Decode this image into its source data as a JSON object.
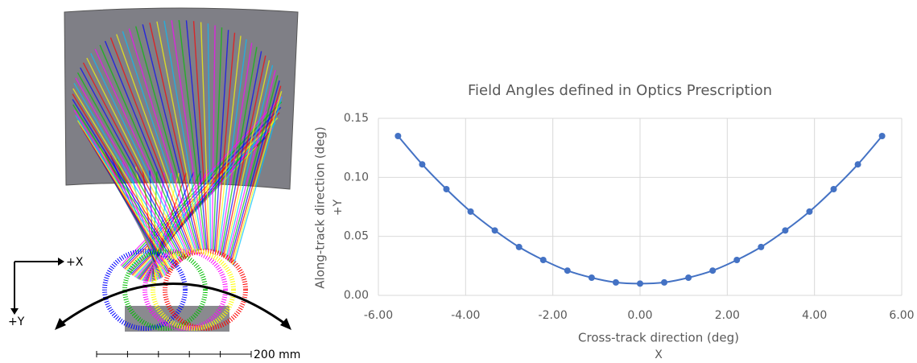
{
  "figure": {
    "axis_x": "+X",
    "axis_y": "+Y",
    "scale": "200 mm"
  },
  "chart_data": {
    "type": "line",
    "title": "Field Angles defined in Optics Prescription",
    "xlabel": "Cross-track direction (deg)",
    "xlabel_sub": "X",
    "ylabel": "Along-track direction (deg)",
    "ylabel_sub": "+Y",
    "x": [
      -5.55,
      -4.995,
      -4.44,
      -3.885,
      -3.33,
      -2.775,
      -2.22,
      -1.665,
      -1.11,
      -0.555,
      0,
      0.555,
      1.11,
      1.665,
      2.22,
      2.775,
      3.33,
      3.885,
      4.44,
      4.995,
      5.55
    ],
    "series": [
      {
        "color": "#4472c4",
        "values": [
          0.135,
          0.111,
          0.09,
          0.071,
          0.055,
          0.041,
          0.03,
          0.021,
          0.015,
          0.011,
          0.01,
          0.011,
          0.015,
          0.021,
          0.03,
          0.041,
          0.055,
          0.071,
          0.09,
          0.111,
          0.135
        ]
      }
    ],
    "xlim": [
      -6,
      6
    ],
    "xticks": [
      {
        "value": -6,
        "label": "-6.00"
      },
      {
        "value": -4,
        "label": "-4.00"
      },
      {
        "value": -2,
        "label": "-2.00"
      },
      {
        "value": 0,
        "label": "0.00"
      },
      {
        "value": 2,
        "label": "2.00"
      },
      {
        "value": 4,
        "label": "4.00"
      },
      {
        "value": 6,
        "label": "6.00"
      }
    ],
    "ylim": [
      0,
      0.15
    ],
    "yticks": [
      {
        "value": 0,
        "label": "0.00"
      },
      {
        "value": 0.05,
        "label": "0.05"
      },
      {
        "value": 0.1,
        "label": "0.10"
      },
      {
        "value": 0.15,
        "label": "0.15"
      }
    ],
    "grid": true
  }
}
